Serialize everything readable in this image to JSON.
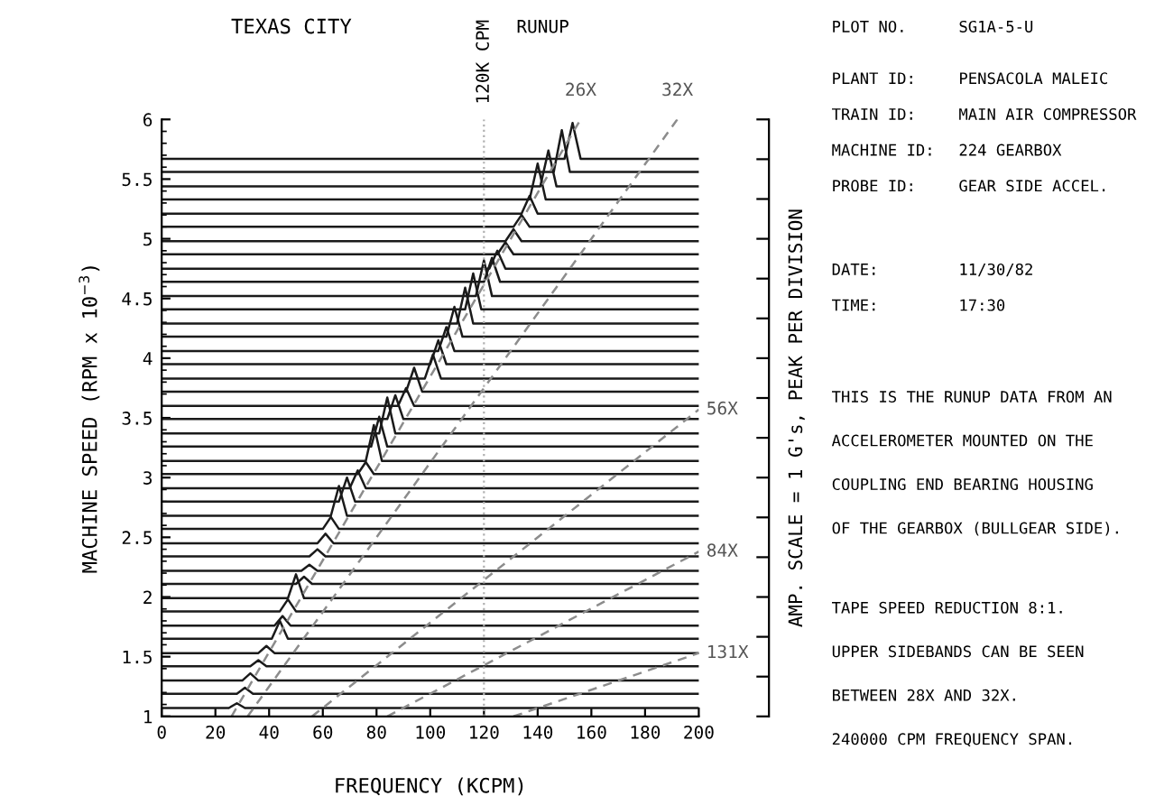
{
  "chart_data": [
    {
      "type": "line",
      "title": "RUNUP",
      "subtitle": "TEXAS CITY",
      "xlabel": "FREQUENCY (KCPM)",
      "ylabel": "MACHINE SPEED (RPM x 10$^{−3}$)",
      "y2label": "AMP. SCALE = 1 G's, PEAK PER DIVISION",
      "xlim": [
        0,
        200
      ],
      "xticks": [
        0,
        20,
        40,
        60,
        80,
        100,
        120,
        140,
        160,
        180,
        200
      ],
      "ylim": [
        1,
        6
      ],
      "yticks": [
        1,
        1.5,
        2,
        2.5,
        3,
        3.5,
        4,
        4.5,
        5,
        5.5,
        6
      ],
      "grid": false,
      "legend": false,
      "marker": "none",
      "line_style": "solid",
      "ref_lines": [
        {
          "axis": "x",
          "value": 120,
          "label": "120K CPM",
          "color": "#b0b0b0",
          "line_style": "dotted"
        }
      ],
      "annotations": [
        {
          "text": "26X",
          "x": 156,
          "y": 6
        },
        {
          "text": "32X",
          "x": 192,
          "y": 6
        },
        {
          "text": "56X",
          "x": 200,
          "y": 3.57
        },
        {
          "text": "84X",
          "x": 200,
          "y": 2.38
        },
        {
          "text": "131X",
          "x": 200,
          "y": 1.53
        }
      ],
      "series": [
        {
          "color": "#1a1a1a",
          "x": [
            0,
            25,
            28,
            31,
            200
          ],
          "values": [
            1.07,
            1.07,
            1.11,
            1.07,
            1.07
          ]
        },
        {
          "color": "#1a1a1a",
          "x": [
            0,
            28,
            31,
            34,
            200
          ],
          "values": [
            1.19,
            1.19,
            1.24,
            1.19,
            1.19
          ]
        },
        {
          "color": "#1a1a1a",
          "x": [
            0,
            30,
            33,
            36,
            200
          ],
          "values": [
            1.3,
            1.3,
            1.36,
            1.3,
            1.3
          ]
        },
        {
          "color": "#1a1a1a",
          "x": [
            0,
            33,
            36,
            39,
            200
          ],
          "values": [
            1.42,
            1.42,
            1.47,
            1.42,
            1.42
          ]
        },
        {
          "color": "#1a1a1a",
          "x": [
            0,
            36,
            39,
            42,
            200
          ],
          "values": [
            1.53,
            1.53,
            1.59,
            1.53,
            1.53
          ]
        },
        {
          "color": "#1a1a1a",
          "x": [
            0,
            41,
            44,
            47,
            200
          ],
          "values": [
            1.65,
            1.65,
            1.8,
            1.65,
            1.65
          ]
        },
        {
          "color": "#1a1a1a",
          "x": [
            0,
            42,
            45,
            48,
            200
          ],
          "values": [
            1.76,
            1.76,
            1.84,
            1.76,
            1.76
          ]
        },
        {
          "color": "#1a1a1a",
          "x": [
            0,
            44,
            47,
            50,
            200
          ],
          "values": [
            1.88,
            1.88,
            1.98,
            1.88,
            1.88
          ]
        },
        {
          "color": "#1a1a1a",
          "x": [
            0,
            47,
            50,
            53,
            200
          ],
          "values": [
            1.99,
            1.99,
            2.19,
            1.99,
            1.99
          ]
        },
        {
          "color": "#1a1a1a",
          "x": [
            0,
            50,
            53,
            56,
            200
          ],
          "values": [
            2.11,
            2.11,
            2.17,
            2.11,
            2.11
          ]
        },
        {
          "color": "#1a1a1a",
          "x": [
            0,
            52,
            55,
            58,
            200
          ],
          "values": [
            2.22,
            2.22,
            2.27,
            2.22,
            2.22
          ]
        },
        {
          "color": "#1a1a1a",
          "x": [
            0,
            55,
            58,
            61,
            200
          ],
          "values": [
            2.34,
            2.34,
            2.4,
            2.34,
            2.34
          ]
        },
        {
          "color": "#1a1a1a",
          "x": [
            0,
            58,
            61,
            64,
            200
          ],
          "values": [
            2.45,
            2.45,
            2.53,
            2.45,
            2.45
          ]
        },
        {
          "color": "#1a1a1a",
          "x": [
            0,
            60,
            63,
            66,
            200
          ],
          "values": [
            2.57,
            2.57,
            2.67,
            2.57,
            2.57
          ]
        },
        {
          "color": "#1a1a1a",
          "x": [
            0,
            63,
            66,
            69,
            200
          ],
          "values": [
            2.68,
            2.68,
            2.93,
            2.68,
            2.68
          ]
        },
        {
          "color": "#1a1a1a",
          "x": [
            0,
            66,
            69,
            72,
            200
          ],
          "values": [
            2.8,
            2.8,
            3.0,
            2.8,
            2.8
          ]
        },
        {
          "color": "#1a1a1a",
          "x": [
            0,
            70,
            73,
            76,
            200
          ],
          "values": [
            2.91,
            2.91,
            3.06,
            2.91,
            2.91
          ]
        },
        {
          "color": "#1a1a1a",
          "x": [
            0,
            73,
            76,
            79,
            200
          ],
          "values": [
            3.03,
            3.03,
            3.13,
            3.03,
            3.03
          ]
        },
        {
          "color": "#1a1a1a",
          "x": [
            0,
            76,
            79,
            82,
            200
          ],
          "values": [
            3.14,
            3.14,
            3.44,
            3.14,
            3.14
          ]
        },
        {
          "color": "#1a1a1a",
          "x": [
            0,
            78,
            81,
            84,
            200
          ],
          "values": [
            3.26,
            3.26,
            3.51,
            3.26,
            3.26
          ]
        },
        {
          "color": "#1a1a1a",
          "x": [
            0,
            81,
            84,
            87,
            200
          ],
          "values": [
            3.37,
            3.37,
            3.67,
            3.37,
            3.37
          ]
        },
        {
          "color": "#1a1a1a",
          "x": [
            0,
            84,
            87,
            90,
            200
          ],
          "values": [
            3.49,
            3.49,
            3.69,
            3.49,
            3.49
          ]
        },
        {
          "color": "#1a1a1a",
          "x": [
            0,
            88,
            91,
            94,
            200
          ],
          "values": [
            3.6,
            3.6,
            3.75,
            3.6,
            3.6
          ]
        },
        {
          "color": "#1a1a1a",
          "x": [
            0,
            91,
            94,
            97,
            200
          ],
          "values": [
            3.72,
            3.72,
            3.92,
            3.72,
            3.72
          ]
        },
        {
          "color": "#1a1a1a",
          "x": [
            0,
            98,
            101,
            104,
            200
          ],
          "values": [
            3.83,
            3.83,
            4.03,
            3.83,
            3.83
          ]
        },
        {
          "color": "#1a1a1a",
          "x": [
            0,
            100,
            103,
            106,
            200
          ],
          "values": [
            3.95,
            3.95,
            4.15,
            3.95,
            3.95
          ]
        },
        {
          "color": "#1a1a1a",
          "x": [
            0,
            103,
            106,
            109,
            200
          ],
          "values": [
            4.06,
            4.06,
            4.26,
            4.06,
            4.06
          ]
        },
        {
          "color": "#1a1a1a",
          "x": [
            0,
            106,
            109,
            112,
            200
          ],
          "values": [
            4.18,
            4.18,
            4.43,
            4.18,
            4.18
          ]
        },
        {
          "color": "#1a1a1a",
          "x": [
            0,
            110,
            113,
            116,
            200
          ],
          "values": [
            4.29,
            4.29,
            4.59,
            4.29,
            4.29
          ]
        },
        {
          "color": "#1a1a1a",
          "x": [
            0,
            113,
            116,
            119,
            200
          ],
          "values": [
            4.41,
            4.41,
            4.71,
            4.41,
            4.41
          ]
        },
        {
          "color": "#1a1a1a",
          "x": [
            0,
            117,
            120,
            123,
            200
          ],
          "values": [
            4.52,
            4.52,
            4.82,
            4.52,
            4.52
          ]
        },
        {
          "color": "#1a1a1a",
          "x": [
            0,
            120,
            123,
            126,
            200
          ],
          "values": [
            4.64,
            4.64,
            4.84,
            4.64,
            4.64
          ]
        },
        {
          "color": "#1a1a1a",
          "x": [
            0,
            122,
            125,
            128,
            200
          ],
          "values": [
            4.75,
            4.75,
            4.9,
            4.75,
            4.75
          ]
        },
        {
          "color": "#1a1a1a",
          "x": [
            0,
            125,
            128,
            131,
            200
          ],
          "values": [
            4.87,
            4.87,
            4.97,
            4.87,
            4.87
          ]
        },
        {
          "color": "#1a1a1a",
          "x": [
            0,
            128,
            131,
            134,
            200
          ],
          "values": [
            4.98,
            4.98,
            5.08,
            4.98,
            4.98
          ]
        },
        {
          "color": "#1a1a1a",
          "x": [
            0,
            131,
            134,
            137,
            200
          ],
          "values": [
            5.1,
            5.1,
            5.2,
            5.1,
            5.1
          ]
        },
        {
          "color": "#1a1a1a",
          "x": [
            0,
            134,
            137,
            140,
            200
          ],
          "values": [
            5.21,
            5.21,
            5.36,
            5.21,
            5.21
          ]
        },
        {
          "color": "#1a1a1a",
          "x": [
            0,
            137,
            140,
            143,
            200
          ],
          "values": [
            5.33,
            5.33,
            5.63,
            5.33,
            5.33
          ]
        },
        {
          "color": "#1a1a1a",
          "x": [
            0,
            141,
            144,
            147,
            200
          ],
          "values": [
            5.44,
            5.44,
            5.74,
            5.44,
            5.44
          ]
        },
        {
          "color": "#1a1a1a",
          "x": [
            0,
            146,
            149,
            152,
            200
          ],
          "values": [
            5.56,
            5.56,
            5.91,
            5.56,
            5.56
          ]
        },
        {
          "color": "#1a1a1a",
          "x": [
            0,
            150,
            153,
            156,
            200
          ],
          "values": [
            5.67,
            5.67,
            5.97,
            5.67,
            5.67
          ]
        },
        {
          "color": "#8c8c8c",
          "line_style": "dashed",
          "x": [
            26,
            156
          ],
          "values": [
            1,
            6
          ]
        },
        {
          "color": "#8c8c8c",
          "line_style": "dashed",
          "x": [
            32,
            192
          ],
          "values": [
            1,
            6
          ]
        },
        {
          "color": "#8c8c8c",
          "line_style": "dashed",
          "x": [
            56,
            200
          ],
          "values": [
            1,
            3.57
          ]
        },
        {
          "color": "#8c8c8c",
          "line_style": "dashed",
          "x": [
            84,
            200
          ],
          "values": [
            1,
            2.38
          ]
        },
        {
          "color": "#8c8c8c",
          "line_style": "dashed",
          "x": [
            131,
            200
          ],
          "values": [
            1,
            1.53
          ]
        }
      ]
    },
    {
      "type": "other",
      "annotations": [
        "PLOT NO.",
        "SG1A-5-U",
        "PLANT ID:",
        "PENSACOLA MALEIC",
        "TRAIN ID:",
        "MAIN AIR COMPRESSOR",
        "MACHINE ID:",
        "224 GEARBOX",
        "PROBE ID:",
        "GEAR SIDE ACCEL.",
        "DATE:",
        "11/30/82",
        "TIME:",
        "17:30",
        "THIS IS THE RUNUP DATA FROM AN",
        "ACCELEROMETER MOUNTED ON THE",
        "COUPLING END BEARING HOUSING",
        "OF THE GEARBOX (BULLGEAR SIDE).",
        "TAPE SPEED REDUCTION 8:1.",
        "UPPER SIDEBANDS CAN BE SEEN",
        "BETWEEN 28X AND 32X.",
        "240000 CPM FREQUENCY SPAN."
      ]
    }
  ]
}
